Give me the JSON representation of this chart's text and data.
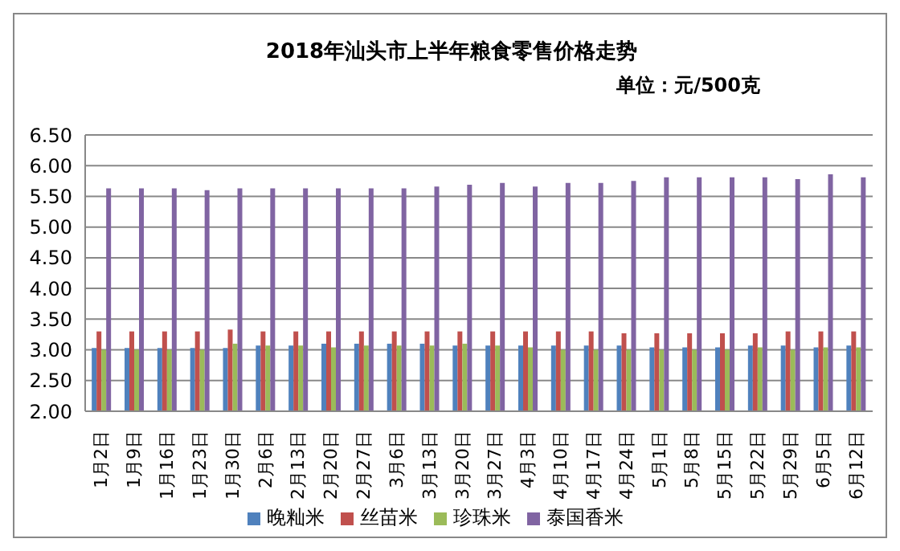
{
  "chart_data": {
    "type": "bar",
    "title": "2018年汕头市上半年粮食零售价格走势",
    "subtitle": "单位：元/500克",
    "categories": [
      "1月2日",
      "1月9日",
      "1月16日",
      "1月23日",
      "1月30日",
      "2月6日",
      "2月13日",
      "2月20日",
      "2月27日",
      "3月6日",
      "3月13日",
      "3月20日",
      "3月27日",
      "4月3日",
      "4月10日",
      "4月17日",
      "4月24日",
      "5月1日",
      "5月8日",
      "5月15日",
      "5月22日",
      "5月29日",
      "6月5日",
      "6月12日"
    ],
    "series": [
      {
        "name": "晚籼米",
        "color": "#4f81bd",
        "values": [
          3.03,
          3.03,
          3.03,
          3.03,
          3.03,
          3.07,
          3.07,
          3.1,
          3.1,
          3.1,
          3.1,
          3.07,
          3.07,
          3.07,
          3.07,
          3.07,
          3.07,
          3.04,
          3.04,
          3.04,
          3.07,
          3.07,
          3.04,
          3.07
        ]
      },
      {
        "name": "丝苗米",
        "color": "#c0504d",
        "values": [
          3.3,
          3.3,
          3.3,
          3.3,
          3.33,
          3.3,
          3.3,
          3.3,
          3.3,
          3.3,
          3.3,
          3.3,
          3.3,
          3.3,
          3.3,
          3.3,
          3.27,
          3.27,
          3.27,
          3.27,
          3.27,
          3.3,
          3.3,
          3.3
        ]
      },
      {
        "name": "珍珠米",
        "color": "#9bbb59",
        "values": [
          3.0,
          3.0,
          3.0,
          3.0,
          3.1,
          3.07,
          3.07,
          3.04,
          3.07,
          3.07,
          3.07,
          3.1,
          3.07,
          3.04,
          3.0,
          3.0,
          3.0,
          3.0,
          3.0,
          3.0,
          3.04,
          3.0,
          3.04,
          3.04
        ]
      },
      {
        "name": "泰国香米",
        "color": "#8064a2",
        "values": [
          5.63,
          5.63,
          5.63,
          5.6,
          5.63,
          5.63,
          5.63,
          5.63,
          5.63,
          5.63,
          5.66,
          5.69,
          5.72,
          5.66,
          5.72,
          5.72,
          5.75,
          5.81,
          5.81,
          5.81,
          5.81,
          5.78,
          5.86,
          5.81
        ]
      }
    ],
    "ylim": [
      2,
      6.5
    ],
    "yticks": [
      {
        "value": 2,
        "label": "2.00"
      },
      {
        "value": 2.5,
        "label": "2.50"
      },
      {
        "value": 3,
        "label": "3.00"
      },
      {
        "value": 3.5,
        "label": "3.50"
      },
      {
        "value": 4,
        "label": "4.00"
      },
      {
        "value": 4.5,
        "label": "4.50"
      },
      {
        "value": 5,
        "label": "5.00"
      },
      {
        "value": 5.5,
        "label": "5.50"
      },
      {
        "value": 6,
        "label": "6.00"
      },
      {
        "value": 6.5,
        "label": "6.50"
      }
    ],
    "grid": "y",
    "legend": "bottom"
  }
}
